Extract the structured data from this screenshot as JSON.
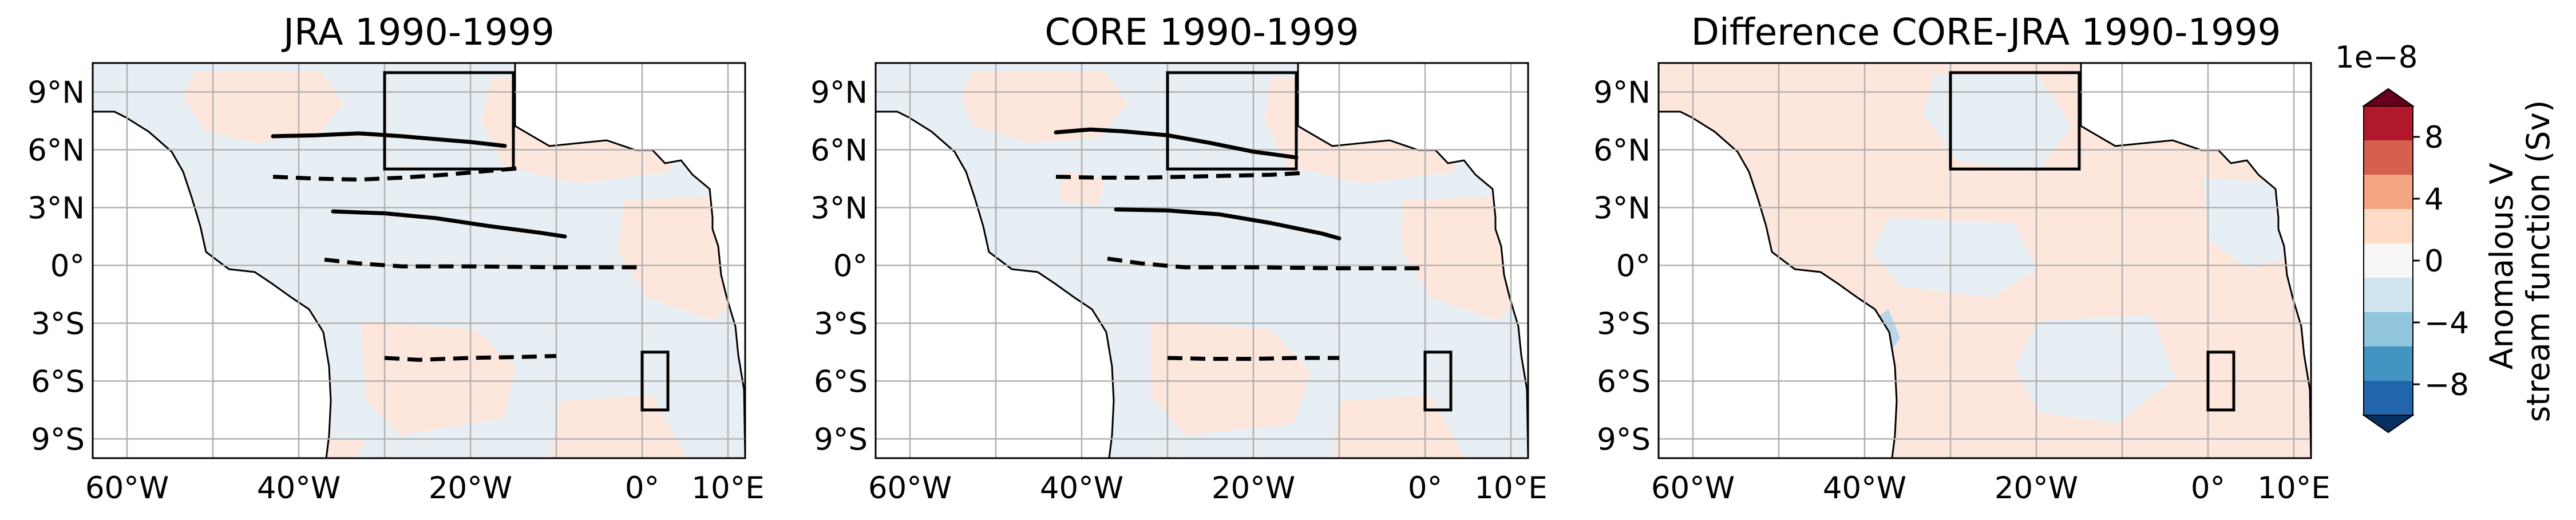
{
  "colors": {
    "ocean_positive": "#fde6dc",
    "ocean_negative": "#e7eff5",
    "land": "#ffffff",
    "coast": "#000000",
    "grid": "#b0b0b0",
    "box": "#000000",
    "colorbar": [
      "#053061",
      "#2166ac",
      "#4393c3",
      "#92c5de",
      "#d1e5f0",
      "#f7f7f7",
      "#fddbc7",
      "#f4a582",
      "#d6604d",
      "#b2182b",
      "#67001f"
    ]
  },
  "map_extent": {
    "lon": [
      -64,
      12
    ],
    "lat": [
      -10,
      10.5
    ]
  },
  "axes": {
    "lon_ticks": [
      {
        "value": -60,
        "label": "60°W"
      },
      {
        "value": -40,
        "label": "40°W"
      },
      {
        "value": -20,
        "label": "20°W"
      },
      {
        "value": 0,
        "label": "0°"
      },
      {
        "value": 10,
        "label": "10°E"
      }
    ],
    "lat_ticks": [
      {
        "value": 9,
        "label": "9°N"
      },
      {
        "value": 6,
        "label": "6°N"
      },
      {
        "value": 3,
        "label": "3°N"
      },
      {
        "value": 0,
        "label": "0°"
      },
      {
        "value": -3,
        "label": "3°S"
      },
      {
        "value": -6,
        "label": "6°S"
      },
      {
        "value": -9,
        "label": "9°S"
      }
    ],
    "grid_lon": [
      -60,
      -50,
      -40,
      -30,
      -20,
      -10,
      0,
      10
    ],
    "grid_lat": [
      9,
      6,
      3,
      0,
      -3,
      -6,
      -9
    ]
  },
  "boxes": [
    {
      "lon": [
        -30,
        -15
      ],
      "lat": [
        5,
        10
      ]
    },
    {
      "lon": [
        0,
        3
      ],
      "lat": [
        -7.5,
        -4.5
      ]
    }
  ],
  "panels": [
    {
      "title": "JRA 1990-1999",
      "current_lines": [
        {
          "style": "solid",
          "lon": [
            -43,
            -38,
            -33,
            -28,
            -24,
            -20,
            -16
          ],
          "lat": [
            6.7,
            6.75,
            6.85,
            6.7,
            6.55,
            6.4,
            6.2
          ]
        },
        {
          "style": "dashed",
          "lon": [
            -43,
            -38,
            -33,
            -28,
            -23,
            -18,
            -14
          ],
          "lat": [
            4.6,
            4.5,
            4.45,
            4.55,
            4.7,
            4.9,
            5.05
          ]
        },
        {
          "style": "solid",
          "lon": [
            -36,
            -30,
            -24,
            -18,
            -12,
            -9
          ],
          "lat": [
            2.8,
            2.7,
            2.45,
            2.05,
            1.7,
            1.5
          ]
        },
        {
          "style": "dashed",
          "lon": [
            -37,
            -33,
            -28,
            -20,
            -10,
            0
          ],
          "lat": [
            0.3,
            0.1,
            -0.05,
            -0.05,
            -0.1,
            -0.1
          ]
        },
        {
          "style": "dashed",
          "lon": [
            -30,
            -26,
            -20,
            -14,
            -10
          ],
          "lat": [
            -4.8,
            -4.9,
            -4.8,
            -4.75,
            -4.7
          ]
        }
      ]
    },
    {
      "title": "CORE 1990-1999",
      "current_lines": [
        {
          "style": "solid",
          "lon": [
            -43,
            -39,
            -35,
            -30,
            -25,
            -20,
            -15
          ],
          "lat": [
            6.9,
            7.05,
            6.95,
            6.75,
            6.35,
            5.9,
            5.6
          ]
        },
        {
          "style": "dashed",
          "lon": [
            -43,
            -38,
            -33,
            -28,
            -23,
            -18,
            -14
          ],
          "lat": [
            4.6,
            4.55,
            4.55,
            4.6,
            4.65,
            4.7,
            4.8
          ]
        },
        {
          "style": "solid",
          "lon": [
            -36,
            -30,
            -24,
            -18,
            -12,
            -10
          ],
          "lat": [
            2.9,
            2.85,
            2.65,
            2.2,
            1.65,
            1.4
          ]
        },
        {
          "style": "dashed",
          "lon": [
            -37,
            -33,
            -28,
            -20,
            -10,
            0
          ],
          "lat": [
            0.35,
            0.1,
            -0.1,
            -0.1,
            -0.15,
            -0.15
          ]
        },
        {
          "style": "dashed",
          "lon": [
            -30,
            -25,
            -20,
            -15,
            -10
          ],
          "lat": [
            -4.8,
            -4.85,
            -4.85,
            -4.8,
            -4.8
          ]
        }
      ]
    },
    {
      "title": "Difference CORE-JRA 1990-1999",
      "current_lines": []
    }
  ],
  "colorbar": {
    "exponent": "1e−8",
    "ticks": [
      {
        "value": 8,
        "label": "8"
      },
      {
        "value": 4,
        "label": "4"
      },
      {
        "value": 0,
        "label": "0"
      },
      {
        "value": -4,
        "label": "−4"
      },
      {
        "value": -8,
        "label": "−8"
      }
    ],
    "range": [
      -10,
      10
    ],
    "label_line1": "Anomalous V",
    "label_line2": "stream function (Sv)"
  }
}
